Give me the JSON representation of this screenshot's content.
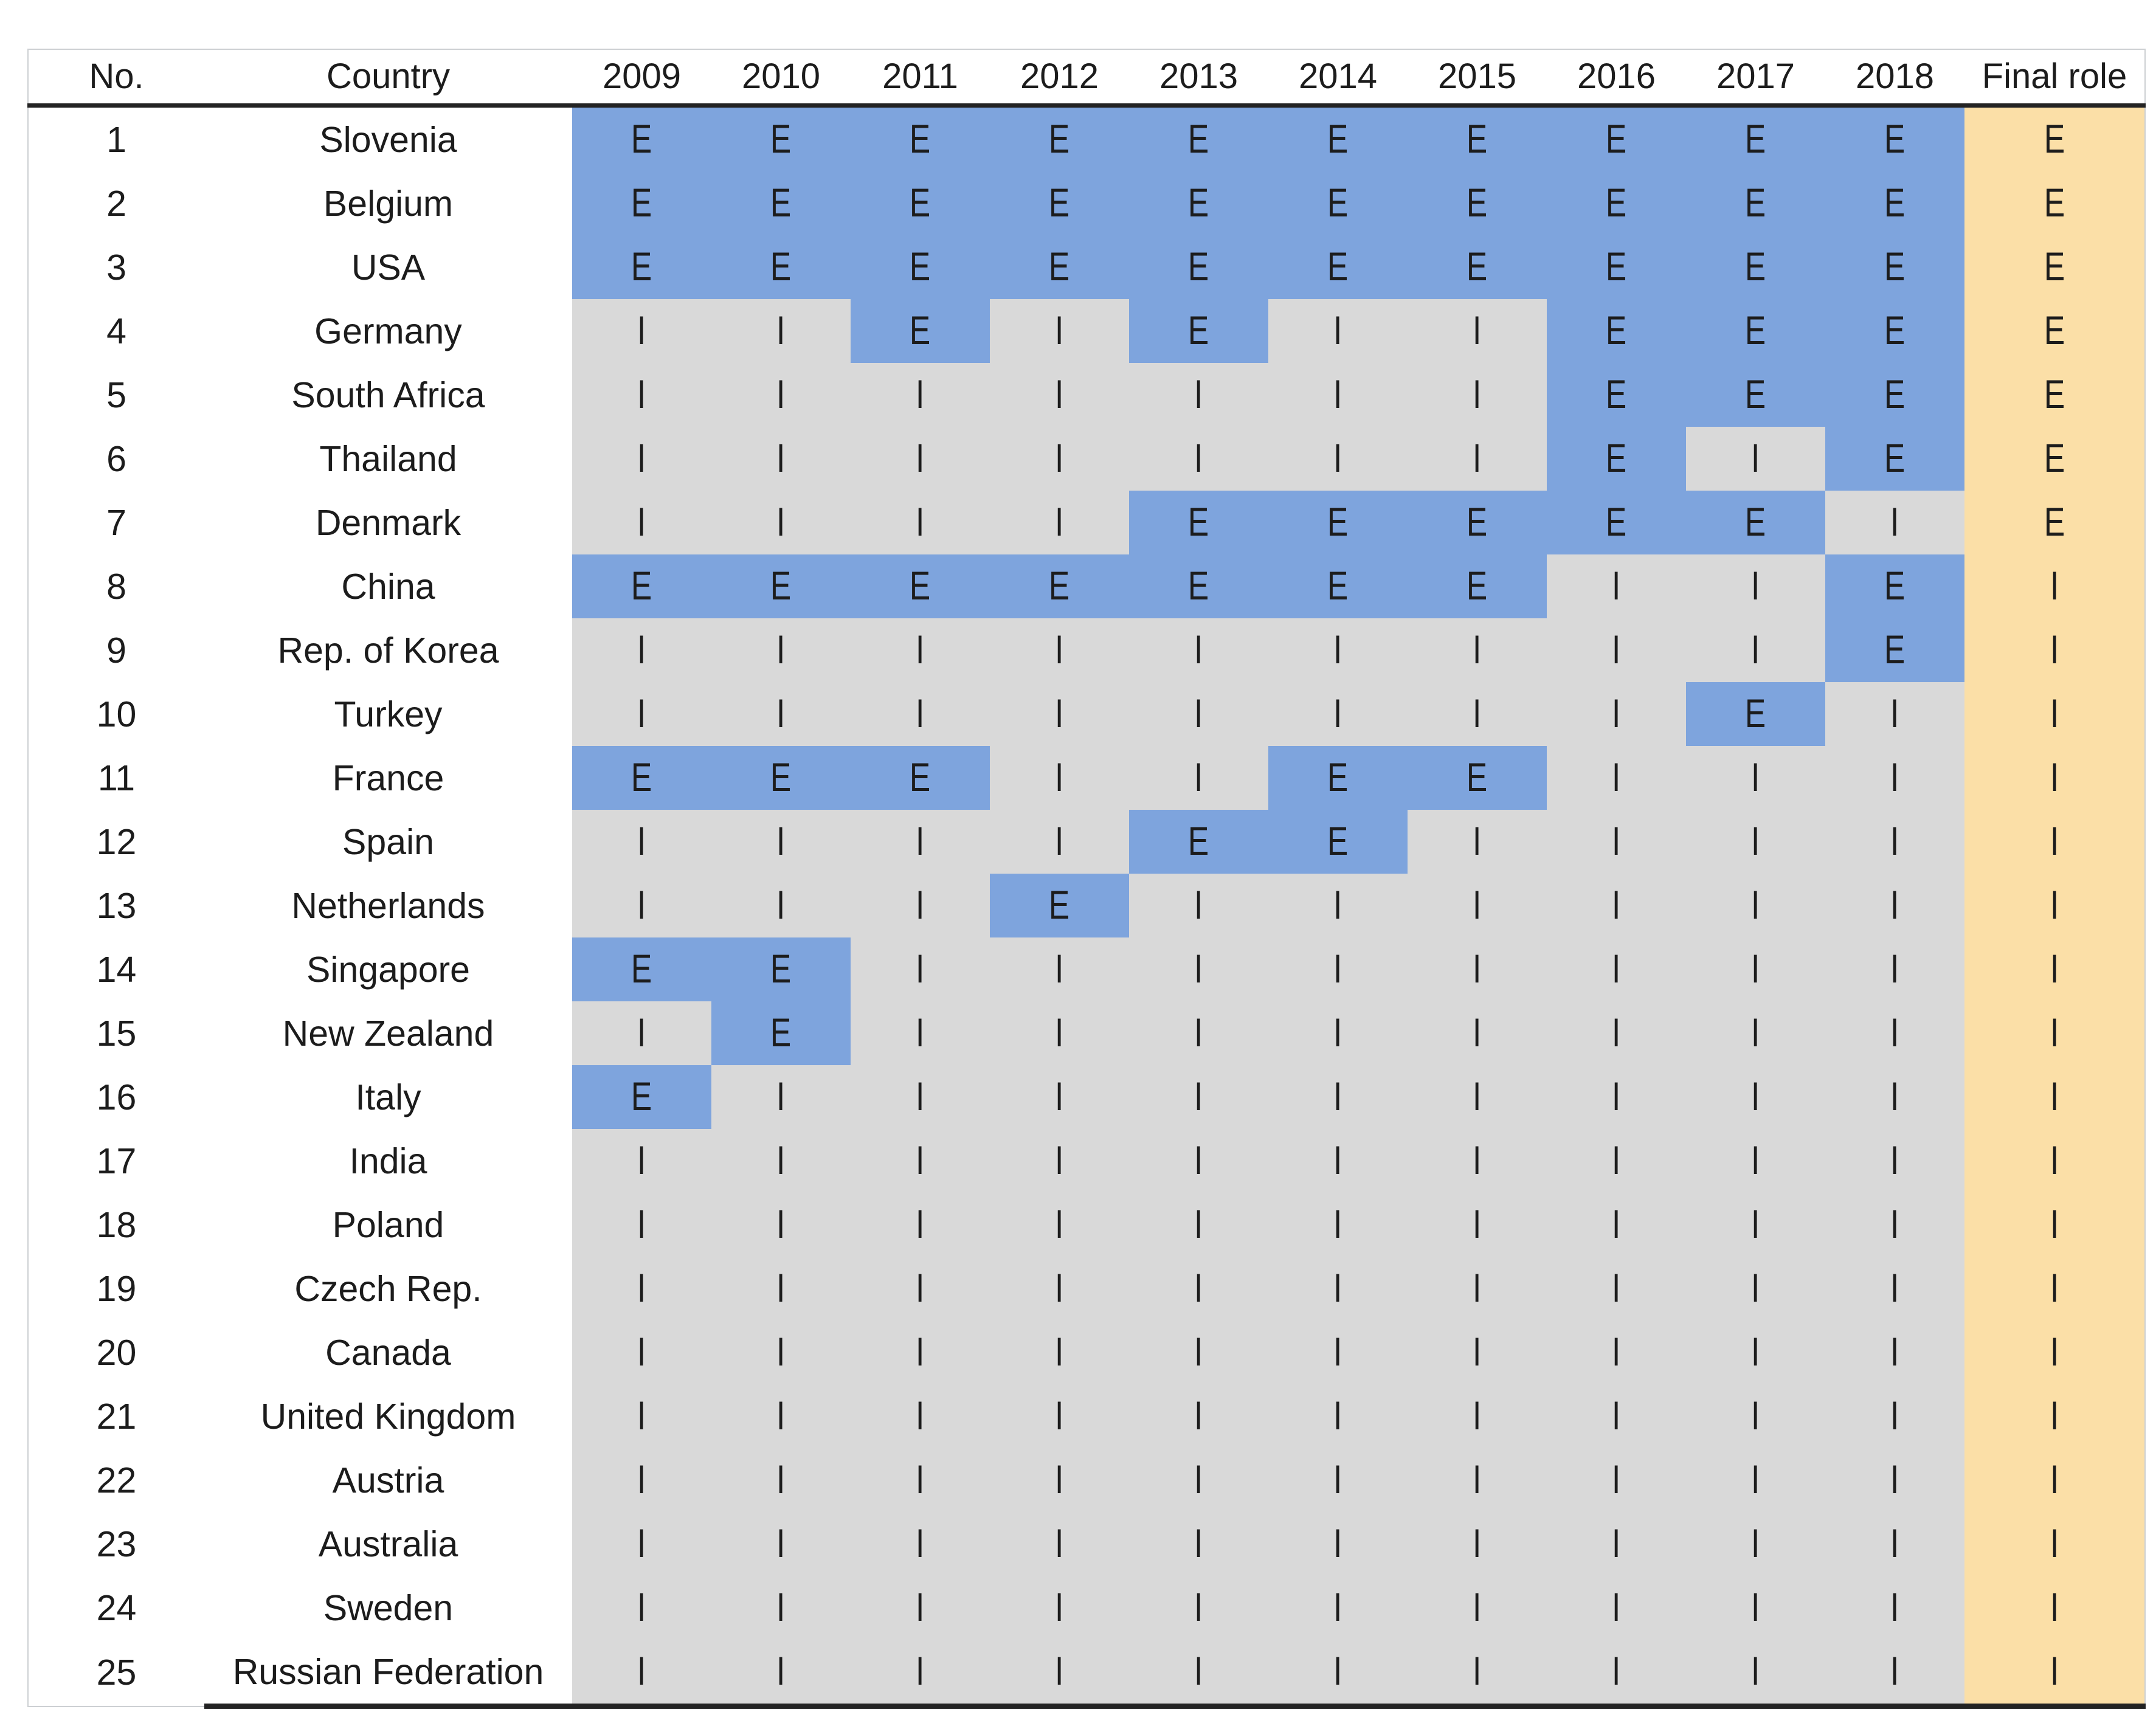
{
  "colors": {
    "exporter_cell": "#7EA4DD",
    "importer_cell": "#D9D9D9",
    "final_role_cell": "#FBDFA7",
    "header_rule": "#232323",
    "text": "#1C1C1C",
    "outer_border": "#CDD0D3"
  },
  "chart_data": {
    "type": "table",
    "title": "",
    "columns": [
      "No.",
      "Country",
      "2009",
      "2010",
      "2011",
      "2012",
      "2013",
      "2014",
      "2015",
      "2016",
      "2017",
      "2018",
      "Final role"
    ],
    "years": [
      "2009",
      "2010",
      "2011",
      "2012",
      "2013",
      "2014",
      "2015",
      "2016",
      "2017",
      "2018"
    ],
    "cell_values_legend": [
      "E",
      "I"
    ],
    "rows": [
      {
        "no": "1",
        "country": "Slovenia",
        "values": [
          "E",
          "E",
          "E",
          "E",
          "E",
          "E",
          "E",
          "E",
          "E",
          "E"
        ],
        "final_role": "E"
      },
      {
        "no": "2",
        "country": "Belgium",
        "values": [
          "E",
          "E",
          "E",
          "E",
          "E",
          "E",
          "E",
          "E",
          "E",
          "E"
        ],
        "final_role": "E"
      },
      {
        "no": "3",
        "country": "USA",
        "values": [
          "E",
          "E",
          "E",
          "E",
          "E",
          "E",
          "E",
          "E",
          "E",
          "E"
        ],
        "final_role": "E"
      },
      {
        "no": "4",
        "country": "Germany",
        "values": [
          "I",
          "I",
          "E",
          "I",
          "E",
          "I",
          "I",
          "E",
          "E",
          "E"
        ],
        "final_role": "E"
      },
      {
        "no": "5",
        "country": "South Africa",
        "values": [
          "I",
          "I",
          "I",
          "I",
          "I",
          "I",
          "I",
          "E",
          "E",
          "E"
        ],
        "final_role": "E"
      },
      {
        "no": "6",
        "country": "Thailand",
        "values": [
          "I",
          "I",
          "I",
          "I",
          "I",
          "I",
          "I",
          "E",
          "I",
          "E"
        ],
        "final_role": "E"
      },
      {
        "no": "7",
        "country": "Denmark",
        "values": [
          "I",
          "I",
          "I",
          "I",
          "E",
          "E",
          "E",
          "E",
          "E",
          "I"
        ],
        "final_role": "E"
      },
      {
        "no": "8",
        "country": "China",
        "values": [
          "E",
          "E",
          "E",
          "E",
          "E",
          "E",
          "E",
          "I",
          "I",
          "E"
        ],
        "final_role": "I"
      },
      {
        "no": "9",
        "country": "Rep. of Korea",
        "values": [
          "I",
          "I",
          "I",
          "I",
          "I",
          "I",
          "I",
          "I",
          "I",
          "E"
        ],
        "final_role": "I"
      },
      {
        "no": "10",
        "country": "Turkey",
        "values": [
          "I",
          "I",
          "I",
          "I",
          "I",
          "I",
          "I",
          "I",
          "E",
          "I"
        ],
        "final_role": "I"
      },
      {
        "no": "11",
        "country": "France",
        "values": [
          "E",
          "E",
          "E",
          "I",
          "I",
          "E",
          "E",
          "I",
          "I",
          "I"
        ],
        "final_role": "I"
      },
      {
        "no": "12",
        "country": "Spain",
        "values": [
          "I",
          "I",
          "I",
          "I",
          "E",
          "E",
          "I",
          "I",
          "I",
          "I"
        ],
        "final_role": "I"
      },
      {
        "no": "13",
        "country": "Netherlands",
        "values": [
          "I",
          "I",
          "I",
          "E",
          "I",
          "I",
          "I",
          "I",
          "I",
          "I"
        ],
        "final_role": "I"
      },
      {
        "no": "14",
        "country": "Singapore",
        "values": [
          "E",
          "E",
          "I",
          "I",
          "I",
          "I",
          "I",
          "I",
          "I",
          "I"
        ],
        "final_role": "I"
      },
      {
        "no": "15",
        "country": "New Zealand",
        "values": [
          "I",
          "E",
          "I",
          "I",
          "I",
          "I",
          "I",
          "I",
          "I",
          "I"
        ],
        "final_role": "I"
      },
      {
        "no": "16",
        "country": "Italy",
        "values": [
          "E",
          "I",
          "I",
          "I",
          "I",
          "I",
          "I",
          "I",
          "I",
          "I"
        ],
        "final_role": "I"
      },
      {
        "no": "17",
        "country": "India",
        "values": [
          "I",
          "I",
          "I",
          "I",
          "I",
          "I",
          "I",
          "I",
          "I",
          "I"
        ],
        "final_role": "I"
      },
      {
        "no": "18",
        "country": "Poland",
        "values": [
          "I",
          "I",
          "I",
          "I",
          "I",
          "I",
          "I",
          "I",
          "I",
          "I"
        ],
        "final_role": "I"
      },
      {
        "no": "19",
        "country": "Czech Rep.",
        "values": [
          "I",
          "I",
          "I",
          "I",
          "I",
          "I",
          "I",
          "I",
          "I",
          "I"
        ],
        "final_role": "I"
      },
      {
        "no": "20",
        "country": "Canada",
        "values": [
          "I",
          "I",
          "I",
          "I",
          "I",
          "I",
          "I",
          "I",
          "I",
          "I"
        ],
        "final_role": "I"
      },
      {
        "no": "21",
        "country": "United Kingdom",
        "values": [
          "I",
          "I",
          "I",
          "I",
          "I",
          "I",
          "I",
          "I",
          "I",
          "I"
        ],
        "final_role": "I"
      },
      {
        "no": "22",
        "country": "Austria",
        "values": [
          "I",
          "I",
          "I",
          "I",
          "I",
          "I",
          "I",
          "I",
          "I",
          "I"
        ],
        "final_role": "I"
      },
      {
        "no": "23",
        "country": "Australia",
        "values": [
          "I",
          "I",
          "I",
          "I",
          "I",
          "I",
          "I",
          "I",
          "I",
          "I"
        ],
        "final_role": "I"
      },
      {
        "no": "24",
        "country": "Sweden",
        "values": [
          "I",
          "I",
          "I",
          "I",
          "I",
          "I",
          "I",
          "I",
          "I",
          "I"
        ],
        "final_role": "I"
      },
      {
        "no": "25",
        "country": "Russian Federation",
        "values": [
          "I",
          "I",
          "I",
          "I",
          "I",
          "I",
          "I",
          "I",
          "I",
          "I"
        ],
        "final_role": "I"
      }
    ]
  }
}
